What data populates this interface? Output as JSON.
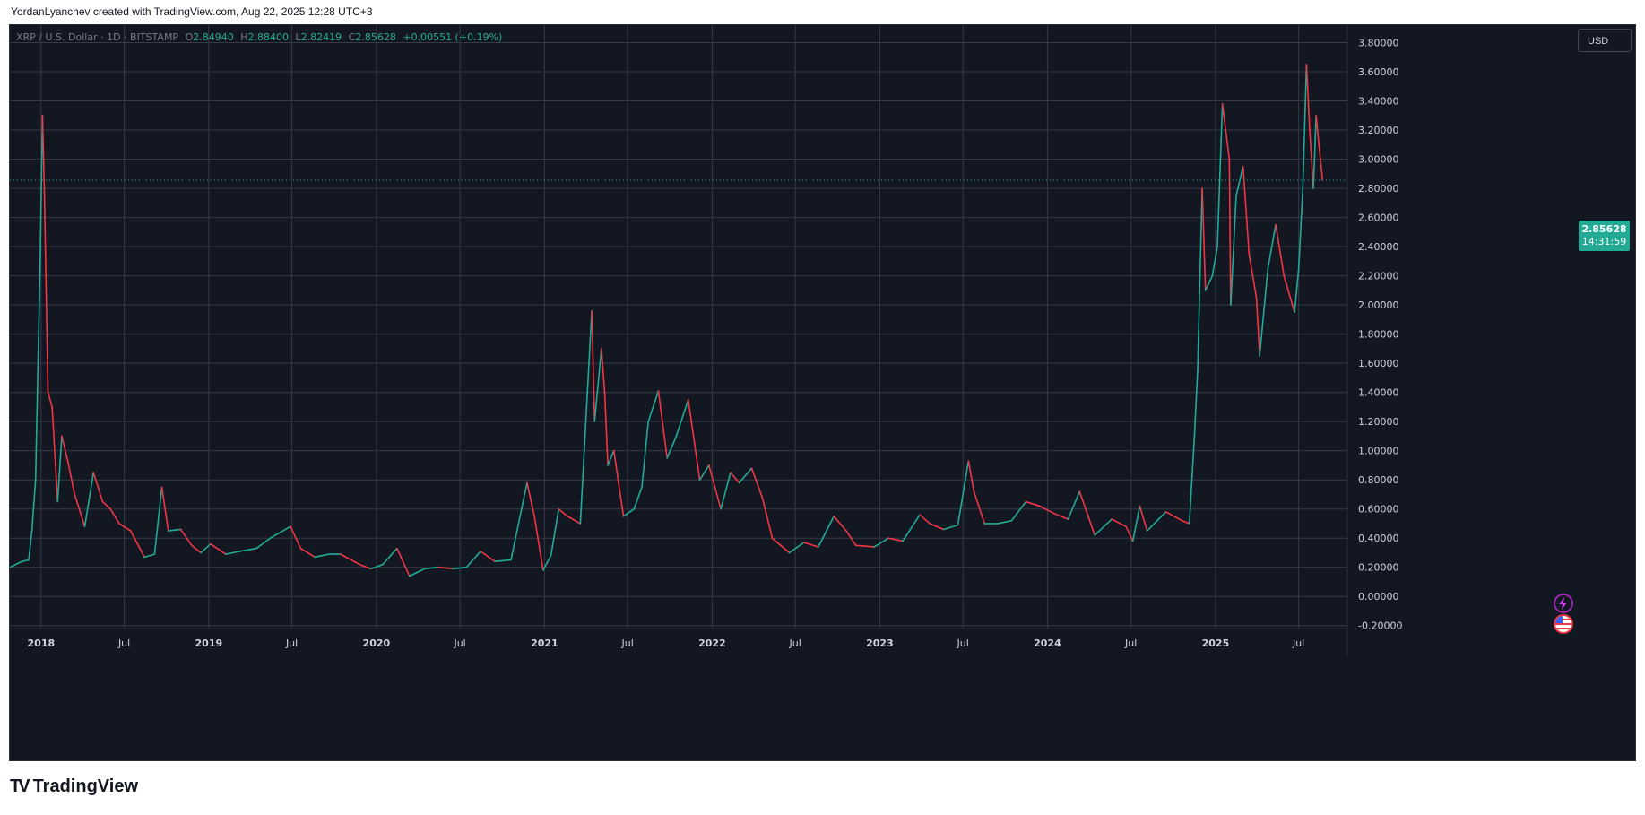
{
  "header": {
    "text": "YordanLyanchev created with TradingView.com, Aug 22, 2025 12:28 UTC+3"
  },
  "legend": {
    "symbol": "XRP / U.S. Dollar · 1D · BITSTAMP",
    "o_label": "O",
    "o_value": "2.84940",
    "h_label": "H",
    "h_value": "2.88400",
    "l_label": "L",
    "l_value": "2.82419",
    "c_label": "C",
    "c_value": "2.85628",
    "change": "+0.00551 (+0.19%)"
  },
  "currency": {
    "label": "USD"
  },
  "last_price": {
    "value": "2.85628",
    "countdown": "14:31:59"
  },
  "footer": {
    "brand": "TradingView",
    "brand_mark": "TV"
  },
  "colors": {
    "background": "#131722",
    "grid": "#363a45",
    "up": "#22ab94",
    "down": "#f23645",
    "axis_text": "#d1d4dc",
    "last_price_line": "#22ab94"
  },
  "icons": {
    "alert": "lightning-bolt-icon",
    "flag": "us-flag-icon"
  },
  "chart_data": {
    "type": "line",
    "title": "",
    "xlabel": "",
    "ylabel": "",
    "ylim": [
      -0.22,
      3.92
    ],
    "y_ticks": [
      "-0.20000",
      "0.00000",
      "0.20000",
      "0.40000",
      "0.60000",
      "0.80000",
      "1.00000",
      "1.20000",
      "1.40000",
      "1.60000",
      "1.80000",
      "2.00000",
      "2.20000",
      "2.40000",
      "2.60000",
      "2.80000",
      "3.00000",
      "3.20000",
      "3.40000",
      "3.60000",
      "3.80000"
    ],
    "x_ticks": [
      {
        "date": "2018-01-01",
        "label": "2018"
      },
      {
        "date": "2018-07-01",
        "label": "Jul"
      },
      {
        "date": "2019-01-01",
        "label": "2019"
      },
      {
        "date": "2019-07-01",
        "label": "Jul"
      },
      {
        "date": "2020-01-01",
        "label": "2020"
      },
      {
        "date": "2020-07-01",
        "label": "Jul"
      },
      {
        "date": "2021-01-01",
        "label": "2021"
      },
      {
        "date": "2021-07-01",
        "label": "Jul"
      },
      {
        "date": "2022-01-01",
        "label": "2022"
      },
      {
        "date": "2022-07-01",
        "label": "Jul"
      },
      {
        "date": "2023-01-01",
        "label": "2023"
      },
      {
        "date": "2023-07-01",
        "label": "Jul"
      },
      {
        "date": "2024-01-01",
        "label": "2024"
      },
      {
        "date": "2024-07-01",
        "label": "Jul"
      },
      {
        "date": "2025-01-01",
        "label": "2025"
      },
      {
        "date": "2025-07-01",
        "label": "Jul"
      }
    ],
    "x_range": [
      "2017-10-25",
      "2025-10-15"
    ],
    "grid": true,
    "last_value": 2.85628,
    "series": [
      {
        "values": [
          [
            "2017-10-25",
            0.2
          ],
          [
            "2017-11-20",
            0.24
          ],
          [
            "2017-12-05",
            0.25
          ],
          [
            "2017-12-12",
            0.45
          ],
          [
            "2017-12-20",
            0.8
          ],
          [
            "2017-12-30",
            2.3
          ],
          [
            "2018-01-04",
            3.3
          ],
          [
            "2018-01-08",
            2.8
          ],
          [
            "2018-01-16",
            1.4
          ],
          [
            "2018-01-25",
            1.3
          ],
          [
            "2018-02-06",
            0.65
          ],
          [
            "2018-02-15",
            1.1
          ],
          [
            "2018-02-28",
            0.93
          ],
          [
            "2018-03-15",
            0.7
          ],
          [
            "2018-04-06",
            0.48
          ],
          [
            "2018-04-25",
            0.85
          ],
          [
            "2018-05-15",
            0.65
          ],
          [
            "2018-06-01",
            0.6
          ],
          [
            "2018-06-20",
            0.5
          ],
          [
            "2018-07-15",
            0.45
          ],
          [
            "2018-08-14",
            0.27
          ],
          [
            "2018-09-05",
            0.29
          ],
          [
            "2018-09-21",
            0.75
          ],
          [
            "2018-10-05",
            0.45
          ],
          [
            "2018-11-01",
            0.46
          ],
          [
            "2018-11-25",
            0.35
          ],
          [
            "2018-12-15",
            0.3
          ],
          [
            "2019-01-05",
            0.36
          ],
          [
            "2019-02-07",
            0.29
          ],
          [
            "2019-03-10",
            0.31
          ],
          [
            "2019-04-15",
            0.33
          ],
          [
            "2019-05-15",
            0.4
          ],
          [
            "2019-06-28",
            0.48
          ],
          [
            "2019-07-20",
            0.33
          ],
          [
            "2019-08-20",
            0.27
          ],
          [
            "2019-09-20",
            0.29
          ],
          [
            "2019-10-15",
            0.29
          ],
          [
            "2019-11-25",
            0.22
          ],
          [
            "2019-12-20",
            0.19
          ],
          [
            "2020-01-15",
            0.22
          ],
          [
            "2020-02-15",
            0.33
          ],
          [
            "2020-03-13",
            0.14
          ],
          [
            "2020-04-15",
            0.19
          ],
          [
            "2020-05-15",
            0.2
          ],
          [
            "2020-06-15",
            0.19
          ],
          [
            "2020-07-15",
            0.2
          ],
          [
            "2020-08-15",
            0.31
          ],
          [
            "2020-09-15",
            0.24
          ],
          [
            "2020-10-20",
            0.25
          ],
          [
            "2020-11-24",
            0.78
          ],
          [
            "2020-12-10",
            0.55
          ],
          [
            "2020-12-29",
            0.18
          ],
          [
            "2021-01-15",
            0.28
          ],
          [
            "2021-02-01",
            0.6
          ],
          [
            "2021-02-20",
            0.55
          ],
          [
            "2021-03-20",
            0.5
          ],
          [
            "2021-04-14",
            1.96
          ],
          [
            "2021-04-20",
            1.2
          ],
          [
            "2021-05-05",
            1.7
          ],
          [
            "2021-05-12",
            1.4
          ],
          [
            "2021-05-19",
            0.9
          ],
          [
            "2021-06-01",
            1.0
          ],
          [
            "2021-06-22",
            0.55
          ],
          [
            "2021-07-15",
            0.6
          ],
          [
            "2021-08-01",
            0.75
          ],
          [
            "2021-08-15",
            1.2
          ],
          [
            "2021-09-06",
            1.41
          ],
          [
            "2021-09-25",
            0.95
          ],
          [
            "2021-10-15",
            1.1
          ],
          [
            "2021-11-10",
            1.35
          ],
          [
            "2021-12-05",
            0.8
          ],
          [
            "2021-12-25",
            0.9
          ],
          [
            "2022-01-20",
            0.6
          ],
          [
            "2022-02-10",
            0.85
          ],
          [
            "2022-03-01",
            0.78
          ],
          [
            "2022-03-28",
            0.88
          ],
          [
            "2022-04-20",
            0.68
          ],
          [
            "2022-05-12",
            0.4
          ],
          [
            "2022-06-18",
            0.3
          ],
          [
            "2022-07-20",
            0.37
          ],
          [
            "2022-08-20",
            0.34
          ],
          [
            "2022-09-23",
            0.55
          ],
          [
            "2022-10-20",
            0.45
          ],
          [
            "2022-11-10",
            0.35
          ],
          [
            "2022-12-20",
            0.34
          ],
          [
            "2023-01-20",
            0.4
          ],
          [
            "2023-02-20",
            0.38
          ],
          [
            "2023-03-29",
            0.56
          ],
          [
            "2023-04-20",
            0.5
          ],
          [
            "2023-05-20",
            0.46
          ],
          [
            "2023-06-20",
            0.49
          ],
          [
            "2023-07-13",
            0.93
          ],
          [
            "2023-07-25",
            0.72
          ],
          [
            "2023-08-17",
            0.5
          ],
          [
            "2023-09-15",
            0.5
          ],
          [
            "2023-10-15",
            0.52
          ],
          [
            "2023-11-15",
            0.65
          ],
          [
            "2023-12-15",
            0.62
          ],
          [
            "2024-01-15",
            0.57
          ],
          [
            "2024-02-15",
            0.53
          ],
          [
            "2024-03-11",
            0.72
          ],
          [
            "2024-04-13",
            0.42
          ],
          [
            "2024-05-20",
            0.53
          ],
          [
            "2024-06-20",
            0.48
          ],
          [
            "2024-07-05",
            0.38
          ],
          [
            "2024-07-20",
            0.62
          ],
          [
            "2024-08-05",
            0.45
          ],
          [
            "2024-09-15",
            0.58
          ],
          [
            "2024-10-20",
            0.52
          ],
          [
            "2024-11-05",
            0.5
          ],
          [
            "2024-11-16",
            1.1
          ],
          [
            "2024-11-23",
            1.55
          ],
          [
            "2024-12-03",
            2.8
          ],
          [
            "2024-12-10",
            2.1
          ],
          [
            "2024-12-25",
            2.2
          ],
          [
            "2025-01-05",
            2.4
          ],
          [
            "2025-01-16",
            3.38
          ],
          [
            "2025-01-31",
            3.0
          ],
          [
            "2025-02-03",
            2.0
          ],
          [
            "2025-02-15",
            2.75
          ],
          [
            "2025-03-02",
            2.95
          ],
          [
            "2025-03-15",
            2.35
          ],
          [
            "2025-03-31",
            2.05
          ],
          [
            "2025-04-07",
            1.65
          ],
          [
            "2025-04-25",
            2.25
          ],
          [
            "2025-05-12",
            2.55
          ],
          [
            "2025-05-30",
            2.2
          ],
          [
            "2025-06-22",
            1.95
          ],
          [
            "2025-07-01",
            2.25
          ],
          [
            "2025-07-10",
            2.8
          ],
          [
            "2025-07-18",
            3.65
          ],
          [
            "2025-07-25",
            3.2
          ],
          [
            "2025-08-02",
            2.8
          ],
          [
            "2025-08-08",
            3.3
          ],
          [
            "2025-08-14",
            3.1
          ],
          [
            "2025-08-22",
            2.85628
          ]
        ]
      }
    ]
  }
}
